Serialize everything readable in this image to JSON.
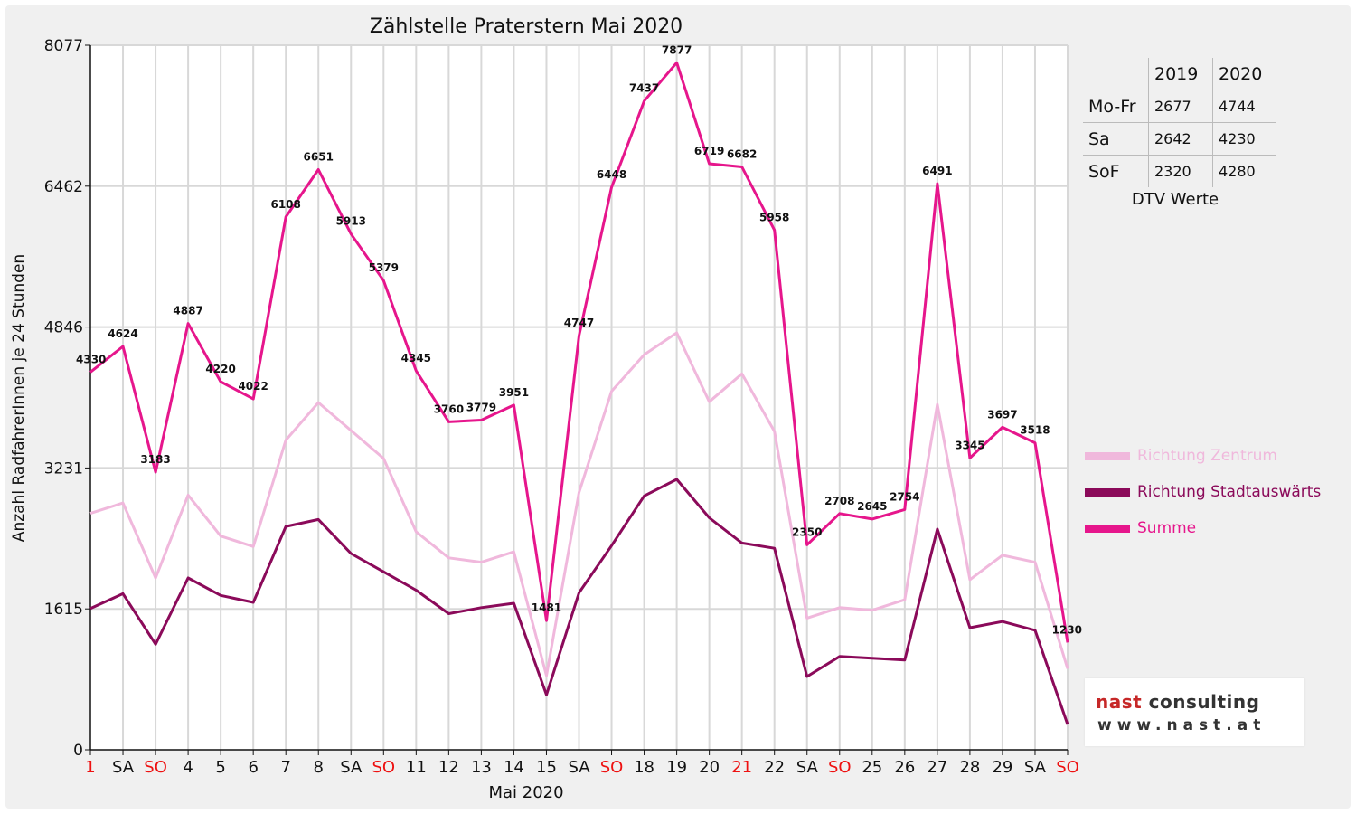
{
  "chart_data": {
    "type": "line",
    "title": "Zählstelle Praterstern Mai 2020",
    "xlabel": "Mai 2020",
    "ylabel": "Anzahl RadfahrerInnen je 24 Stunden",
    "ylim": [
      0,
      8077
    ],
    "yticks": [
      "0",
      "1615",
      "3231",
      "4846",
      "6462",
      "8077"
    ],
    "grid": true,
    "legend_position": "right",
    "categories": [
      "1",
      "SA",
      "SO",
      "4",
      "5",
      "6",
      "7",
      "8",
      "SA",
      "SO",
      "11",
      "12",
      "13",
      "14",
      "15",
      "SA",
      "SO",
      "18",
      "19",
      "20",
      "21",
      "22",
      "SA",
      "SO",
      "25",
      "26",
      "27",
      "28",
      "29",
      "SA",
      "SO"
    ],
    "category_colors": [
      "#ee1111",
      "#111111",
      "#ee1111",
      "#111111",
      "#111111",
      "#111111",
      "#111111",
      "#111111",
      "#111111",
      "#ee1111",
      "#111111",
      "#111111",
      "#111111",
      "#111111",
      "#111111",
      "#111111",
      "#ee1111",
      "#111111",
      "#111111",
      "#111111",
      "#ee1111",
      "#111111",
      "#111111",
      "#ee1111",
      "#111111",
      "#111111",
      "#111111",
      "#111111",
      "#111111",
      "#111111",
      "#ee1111"
    ],
    "series": [
      {
        "name": "Richtung Zentrum",
        "color": "#f0b8dc",
        "values": [
          2710,
          2830,
          1970,
          2920,
          2450,
          2330,
          3550,
          3980,
          3660,
          3340,
          2500,
          2200,
          2150,
          2270,
          850,
          2950,
          4110,
          4530,
          4780,
          3990,
          4310,
          3650,
          1510,
          1630,
          1600,
          1720,
          3960,
          1950,
          2230,
          2150,
          930
        ]
      },
      {
        "name": "Richtung Stadtauswärts",
        "color": "#8b0a5a",
        "values": [
          1620,
          1790,
          1210,
          1970,
          1770,
          1690,
          2560,
          2640,
          2250,
          2040,
          1830,
          1560,
          1630,
          1680,
          630,
          1800,
          2340,
          2910,
          3100,
          2660,
          2370,
          2310,
          840,
          1070,
          1050,
          1030,
          2530,
          1400,
          1470,
          1370,
          290
        ]
      },
      {
        "name": "Summe",
        "color": "#e6168c",
        "values": [
          4330,
          4624,
          3183,
          4887,
          4220,
          4022,
          6108,
          6651,
          5913,
          5379,
          4345,
          3760,
          3779,
          3951,
          1481,
          4747,
          6448,
          7437,
          7877,
          6719,
          6682,
          5958,
          2350,
          2708,
          2645,
          2754,
          6491,
          3345,
          3697,
          3518,
          1230
        ]
      }
    ],
    "data_labels": [
      "4330",
      "4624",
      "3183",
      "4887",
      "4220",
      "4022",
      "6108",
      "6651",
      "5913",
      "5379",
      "4345",
      "3760",
      "3779",
      "3951",
      "1481",
      "4747",
      "6448",
      "7437",
      "7877",
      "6719",
      "6682",
      "5958",
      "2350",
      "2708",
      "2645",
      "2754",
      "6491",
      "3345",
      "3697",
      "3518",
      "1230"
    ]
  },
  "dtv_table": {
    "headers": [
      "2019",
      "2020"
    ],
    "rows": [
      {
        "label": "Mo-Fr",
        "v2019": "2677",
        "v2020": "4744"
      },
      {
        "label": "Sa",
        "v2019": "2642",
        "v2020": "4230"
      },
      {
        "label": "SoF",
        "v2019": "2320",
        "v2020": "4280"
      }
    ],
    "caption": "DTV Werte"
  },
  "logo": {
    "brand": "nast",
    "brand_rest": " consulting",
    "url": "www.nast.at"
  }
}
